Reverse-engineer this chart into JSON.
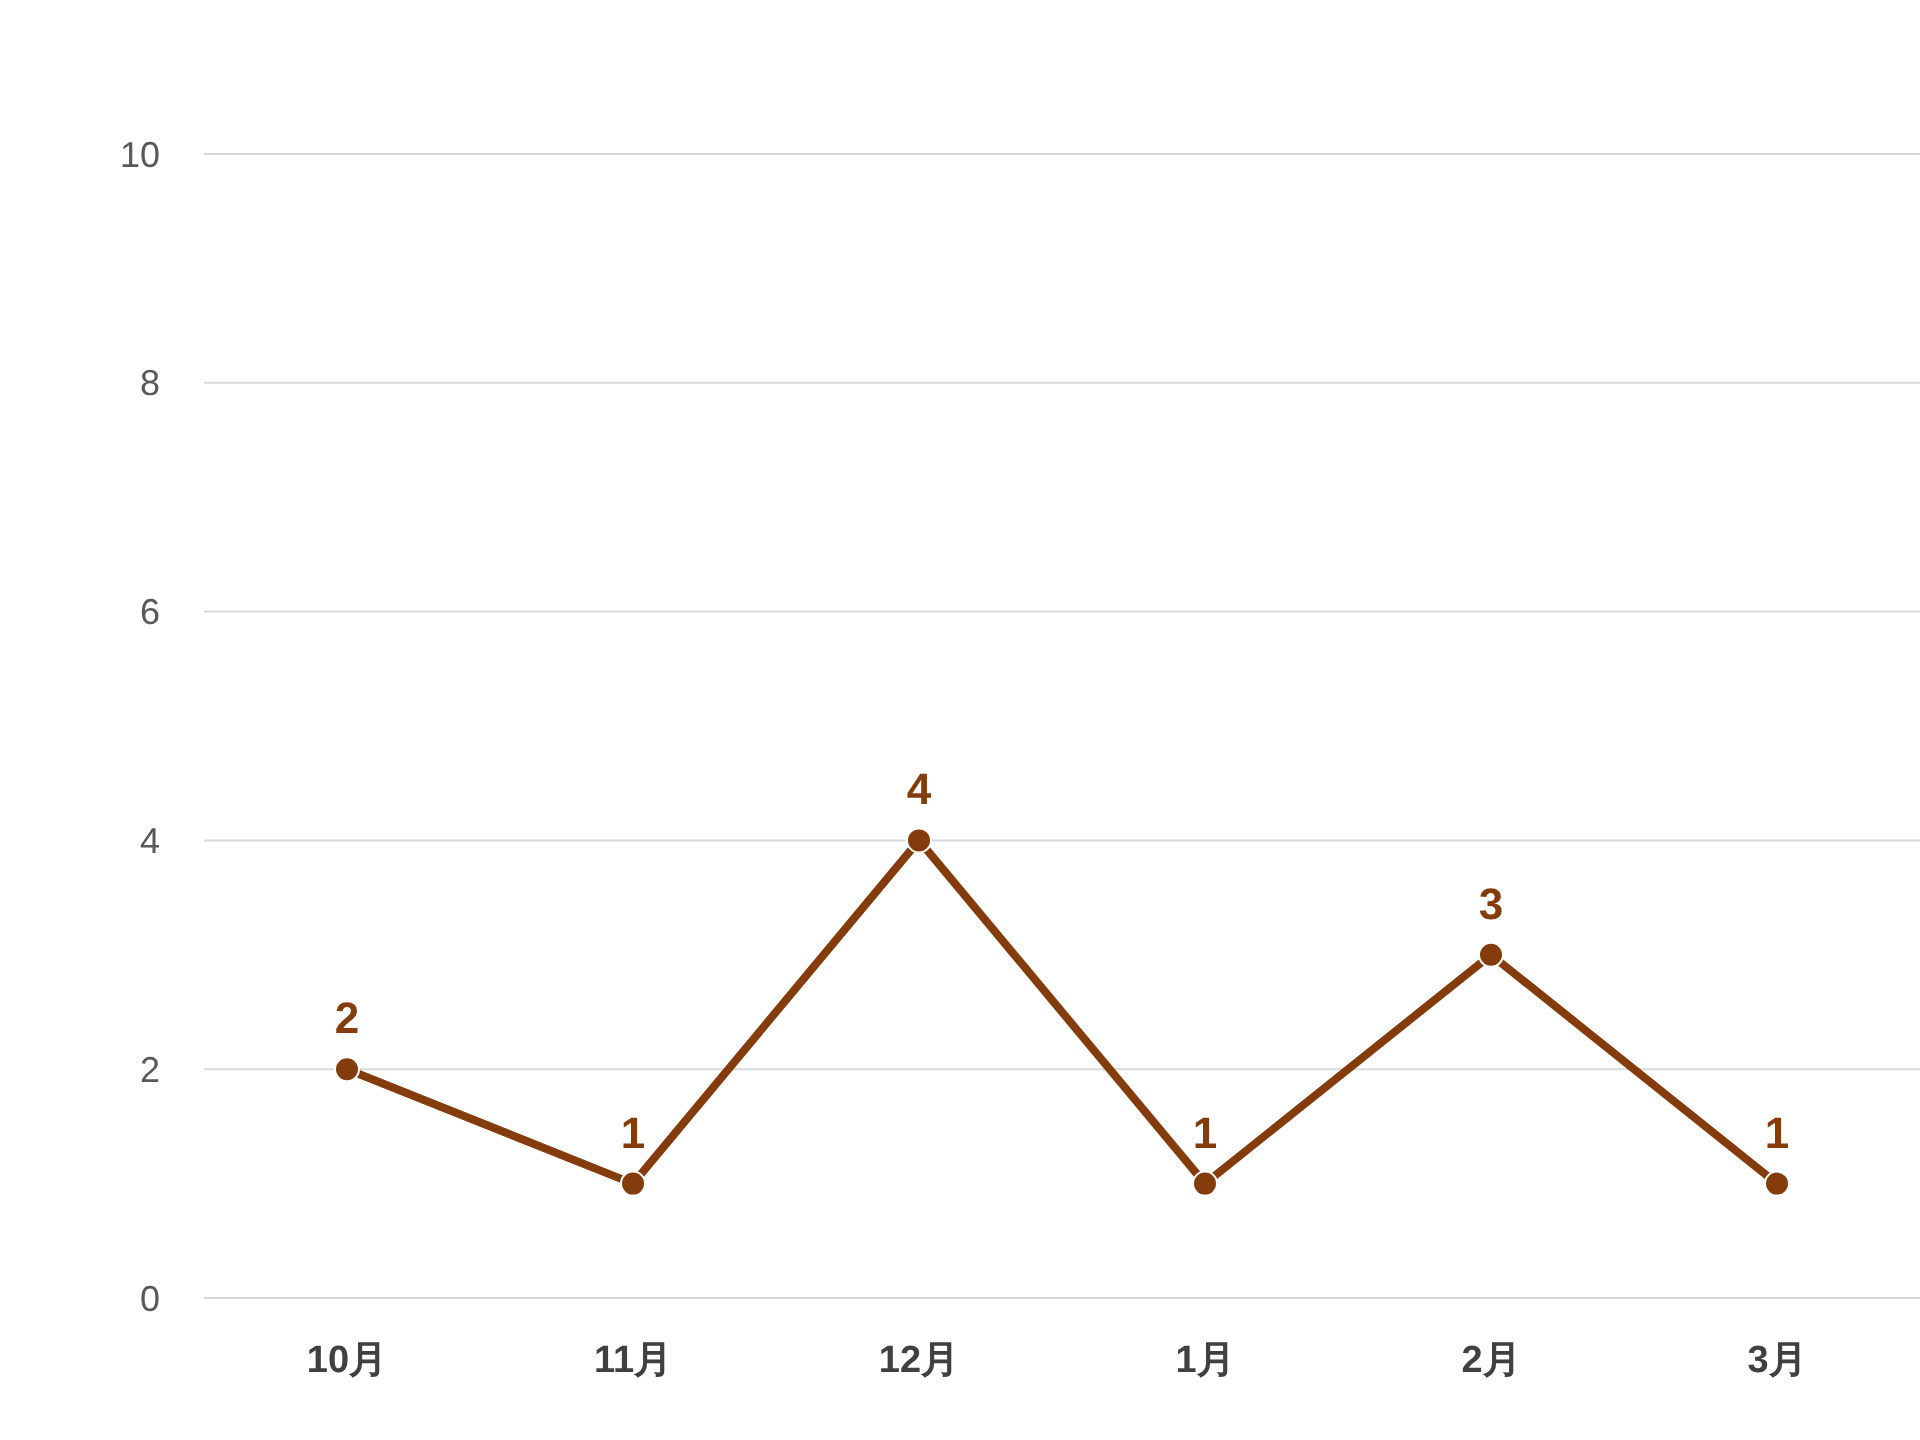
{
  "chart_data": {
    "type": "line",
    "categories": [
      "10月",
      "11月",
      "12月",
      "1月",
      "2月",
      "3月"
    ],
    "series": [
      {
        "color": "#843c0c",
        "values": [
          2,
          1,
          4,
          1,
          3,
          1
        ]
      }
    ],
    "ylim": [
      0,
      10
    ],
    "yticks": [
      0,
      2,
      4,
      6,
      8,
      10
    ],
    "grid": "y",
    "marker": "circle",
    "line_style": "solid",
    "data_labels": true
  }
}
